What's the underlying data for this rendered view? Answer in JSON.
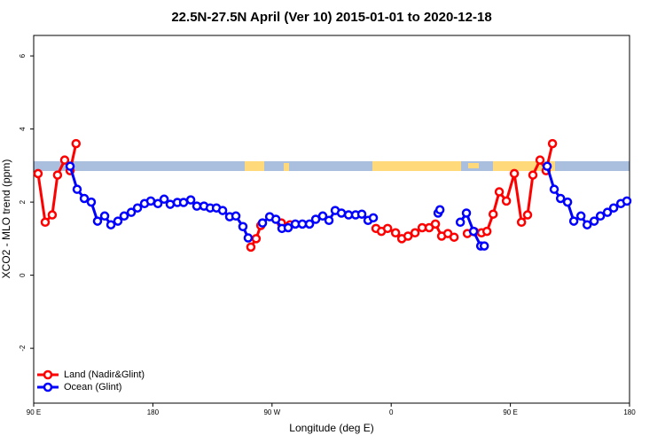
{
  "chart_data": {
    "type": "line",
    "title": "22.5N-27.5N April (Ver 10)   2015-01-01 to 2020-12-18",
    "xlabel": "Longitude (deg E)",
    "ylabel": "XCO2 - MLO trend (ppm)",
    "xlim": [
      90,
      540
    ],
    "xticks": [
      {
        "value": 90,
        "label": "90 E"
      },
      180,
      {
        "value": 270,
        "label": "90 W"
      },
      {
        "value": 360,
        "label": "0"
      },
      {
        "value": 450,
        "label": "90 E"
      },
      {
        "value": 540,
        "label": "180"
      }
    ],
    "ylim": [
      -3.5,
      6.56
    ],
    "yticks": [
      -2,
      0,
      2,
      4,
      6
    ],
    "legend": "bottom-left",
    "series": [
      {
        "name": "Land (Nadir&Glint)",
        "color": "#ff0000",
        "x": [
          93.3,
          98.7,
          104,
          108,
          113.4,
          117.5,
          122,
          null,
          254,
          258,
          261.5,
          null,
          277,
          283.6,
          null,
          348.5,
          352.6,
          357.3,
          363.3,
          368,
          372.7,
          378,
          383.4,
          388.7,
          393.4,
          398.1,
          402.8,
          407.5,
          null,
          417.5,
          422.9,
          428.2,
          432.3,
          437,
          441.6,
          447,
          453,
          458.4,
          463,
          467,
          472.4,
          477,
          481.8
        ],
        "values": [
          2.78,
          1.45,
          1.65,
          2.74,
          3.15,
          2.86,
          3.6,
          null,
          0.77,
          1.0,
          1.36,
          null,
          1.43,
          1.38,
          null,
          1.28,
          1.2,
          1.28,
          1.16,
          1.0,
          1.07,
          1.16,
          1.3,
          1.3,
          1.4,
          1.07,
          1.14,
          1.04,
          null,
          1.14,
          1.19,
          1.16,
          1.2,
          1.67,
          2.28,
          2.03,
          2.78,
          1.45,
          1.65,
          2.74,
          3.15,
          2.86,
          3.6
        ]
      },
      {
        "name": "Ocean (Glint)",
        "color": "#0000ff",
        "x": [
          117.5,
          122.8,
          128.2,
          133.5,
          138.2,
          143.6,
          148.3,
          153.6,
          158.3,
          163.7,
          168.4,
          173.7,
          178.4,
          183.8,
          188.5,
          193.1,
          198.5,
          203.2,
          208.6,
          213.2,
          218.6,
          223.3,
          228,
          232.7,
          238,
          242.7,
          248,
          252,
          null,
          262.8,
          268.2,
          272.9,
          277.5,
          282.2,
          287.6,
          292.9,
          298.3,
          303,
          308.3,
          313,
          317.7,
          322.4,
          327.8,
          333.1,
          337.8,
          342.5,
          346.5,
          null,
          395.4,
          396.8,
          null,
          412.2,
          416.8,
          422.2,
          427.6,
          430.3,
          null,
          477.8,
          483.1,
          487.9,
          493.2,
          497.9,
          503.3,
          508,
          513.3,
          518,
          523.3,
          528,
          533.4,
          538
        ],
        "values": [
          2.98,
          2.35,
          2.1,
          2.0,
          1.48,
          1.62,
          1.38,
          1.48,
          1.62,
          1.72,
          1.84,
          1.96,
          2.03,
          1.96,
          2.08,
          1.94,
          1.99,
          1.99,
          2.06,
          1.89,
          1.89,
          1.84,
          1.84,
          1.77,
          1.6,
          1.62,
          1.33,
          1.02,
          null,
          1.43,
          1.6,
          1.53,
          1.28,
          1.3,
          1.4,
          1.4,
          1.4,
          1.53,
          1.62,
          1.5,
          1.77,
          1.7,
          1.65,
          1.65,
          1.67,
          1.5,
          1.57,
          null,
          1.7,
          1.79,
          null,
          1.45,
          1.7,
          1.2,
          0.8,
          0.8,
          null,
          2.98,
          2.35,
          2.1,
          2.0,
          1.48,
          1.62,
          1.38,
          1.48,
          1.62,
          1.72,
          1.84,
          1.96,
          2.03
        ]
      }
    ]
  }
}
